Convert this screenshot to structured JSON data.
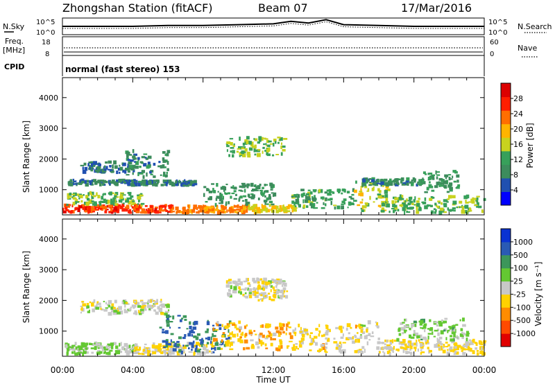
{
  "header": {
    "station": "Zhongshan Station (fitACF)",
    "beam": "Beam 07",
    "date": "17/Mar/2016"
  },
  "left_labels": {
    "nsky": "N.Sky",
    "freq_top": "Freq.",
    "freq_unit": "[MHz]",
    "cpid": "CPID"
  },
  "right_labels": {
    "nsearch": "N.Search",
    "nave": "Nave"
  },
  "noise_ticks": {
    "left_top": "10^5",
    "left_bottom": "10^0",
    "right_top": "10^5",
    "right_bottom": "10^0"
  },
  "freq_ticks": {
    "left_top": "18",
    "left_bottom": "8",
    "right_top": "60",
    "right_bottom": "0"
  },
  "cpid_text": "normal (fast stereo) 153",
  "colors": {
    "power_scale": [
      "#0000ff",
      "#2050b0",
      "#3c8c5c",
      "#37a05a",
      "#c8d21e",
      "#ffb400",
      "#ff6e00",
      "#ff1e00",
      "#dc0000"
    ],
    "velocity_scale": [
      "#e00000",
      "#ff4a00",
      "#ff8c00",
      "#ffd200",
      "#c8c8c8",
      "#64c832",
      "#3c965a",
      "#2a5ab4",
      "#0a32d2"
    ]
  },
  "chart_data": [
    {
      "type": "heatmap",
      "name": "power-panel",
      "ylabel": "Slant Range [km]",
      "yticks": [
        "4000",
        "3000",
        "2000",
        "1000"
      ],
      "ylim": [
        180,
        4650
      ],
      "xlim": [
        0,
        24
      ],
      "colorbar": {
        "label": "Power [dB]",
        "ticks": [
          "28",
          "24",
          "20",
          "16",
          "12",
          "8",
          "4"
        ],
        "range": [
          0,
          32
        ]
      },
      "regions": [
        {
          "t0": 0.0,
          "t1": 6.2,
          "r0": 250,
          "r1": 500,
          "v": 26
        },
        {
          "t0": 6.2,
          "t1": 10.5,
          "r0": 250,
          "r1": 480,
          "v": 22
        },
        {
          "t0": 0.2,
          "t1": 4.5,
          "r0": 500,
          "r1": 900,
          "v": 14
        },
        {
          "t0": 0.3,
          "t1": 7.5,
          "r0": 1150,
          "r1": 1300,
          "v": 8
        },
        {
          "t0": 1.0,
          "t1": 4.0,
          "r0": 1550,
          "r1": 1900,
          "v": 7
        },
        {
          "t0": 3.5,
          "t1": 6.0,
          "r0": 1400,
          "r1": 2300,
          "v": 9
        },
        {
          "t0": 9.3,
          "t1": 12.6,
          "r0": 2100,
          "r1": 2700,
          "v": 14
        },
        {
          "t0": 8.0,
          "t1": 12.0,
          "r0": 500,
          "r1": 1200,
          "v": 10
        },
        {
          "t0": 10.5,
          "t1": 13.2,
          "r0": 250,
          "r1": 500,
          "v": 18
        },
        {
          "t0": 13.0,
          "t1": 16.5,
          "r0": 400,
          "r1": 1000,
          "v": 12
        },
        {
          "t0": 16.5,
          "t1": 18.5,
          "r0": 300,
          "r1": 1300,
          "v": 16
        },
        {
          "t0": 17.0,
          "t1": 20.5,
          "r0": 1150,
          "r1": 1350,
          "v": 9
        },
        {
          "t0": 18.0,
          "t1": 24.0,
          "r0": 250,
          "r1": 800,
          "v": 14
        },
        {
          "t0": 20.5,
          "t1": 22.5,
          "r0": 900,
          "r1": 1600,
          "v": 10
        }
      ]
    },
    {
      "type": "heatmap",
      "name": "velocity-panel",
      "xlabel": "Time UT",
      "ylabel": "Slant Range [km]",
      "yticks": [
        "4000",
        "3000",
        "2000",
        "1000"
      ],
      "xticks": [
        "00:00",
        "04:00",
        "08:00",
        "12:00",
        "16:00",
        "20:00",
        "00:00"
      ],
      "ylim": [
        180,
        4650
      ],
      "xlim": [
        0,
        24
      ],
      "colorbar": {
        "label": "Velocity [m s⁻¹]",
        "ticks": [
          "1000",
          "500",
          "100",
          "25",
          "-25",
          "-100",
          "-500",
          "-1000"
        ],
        "range": [
          -1200,
          1200
        ]
      },
      "regions": [
        {
          "t0": 0.0,
          "t1": 4.0,
          "r0": 250,
          "r1": 600,
          "v": 150
        },
        {
          "t0": 4.0,
          "t1": 8.5,
          "r0": 250,
          "r1": 600,
          "v": -150
        },
        {
          "t0": 1.0,
          "t1": 6.0,
          "r0": 1550,
          "r1": 2000,
          "v": 0
        },
        {
          "t0": 5.5,
          "t1": 9.5,
          "r0": 300,
          "r1": 1500,
          "v": 700
        },
        {
          "t0": 9.3,
          "t1": 12.6,
          "r0": 2100,
          "r1": 2700,
          "v": 0
        },
        {
          "t0": 10.8,
          "t1": 12.8,
          "r0": 2000,
          "r1": 2600,
          "v": -150
        },
        {
          "t0": 8.5,
          "t1": 13.0,
          "r0": 400,
          "r1": 1300,
          "v": -300
        },
        {
          "t0": 13.0,
          "t1": 17.0,
          "r0": 300,
          "r1": 1200,
          "v": -200
        },
        {
          "t0": 16.8,
          "t1": 18.0,
          "r0": 300,
          "r1": 1300,
          "v": 0
        },
        {
          "t0": 18.0,
          "t1": 24.0,
          "r0": 250,
          "r1": 700,
          "v": -150
        },
        {
          "t0": 19.0,
          "t1": 23.0,
          "r0": 700,
          "r1": 1400,
          "v": 200
        }
      ]
    }
  ],
  "noise_series": {
    "name": "noise",
    "x": [
      0,
      2,
      4,
      6,
      8,
      10,
      12,
      13,
      14,
      15,
      16,
      18,
      20,
      22,
      24
    ],
    "y": [
      10,
      10,
      10,
      11,
      11,
      12,
      13,
      16,
      14,
      18,
      12,
      11,
      10,
      10,
      10
    ]
  }
}
